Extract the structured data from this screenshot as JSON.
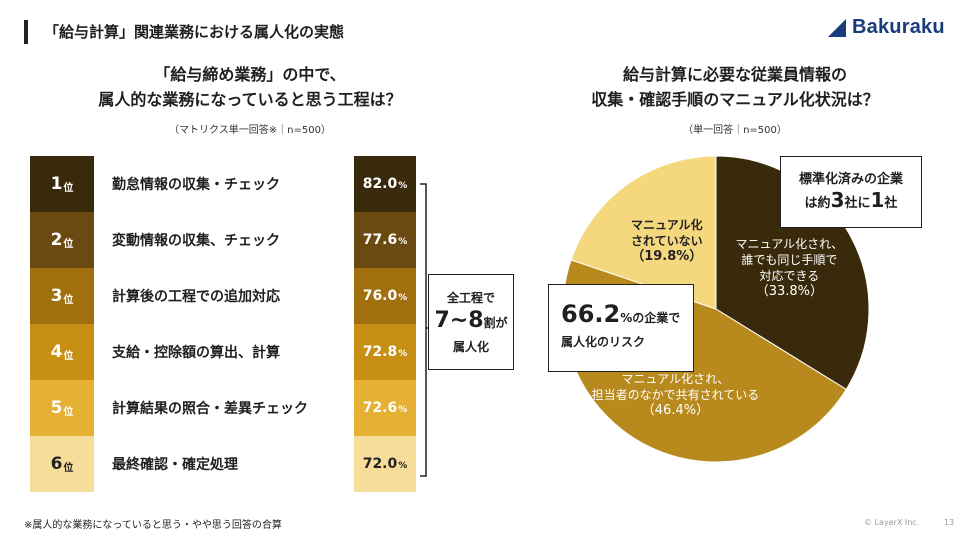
{
  "header": {
    "title": "「給与計算」関連業務における属人化の実態"
  },
  "brand": {
    "name": "Bakuraku",
    "color": "#1a3c7a"
  },
  "left": {
    "title_lines": [
      "「給与締め業務」の中で、",
      "属人的な業務になっていると思う工程は？"
    ],
    "note": "（マトリクス単一回答※｜n=500）",
    "rank_suffix": "位",
    "pct_unit": "%",
    "summary": {
      "line1": "全工程で",
      "main": "7~8",
      "unit": "割",
      "tail": "が",
      "line3": "属人化"
    }
  },
  "right": {
    "title_lines": [
      "給与計算に必要な従業員情報の",
      "収集・確認手順のマニュアル化状況は？"
    ],
    "note": "（単一回答｜n=500）",
    "callout_top": {
      "line1": "標準化済みの企業",
      "pre": "は約",
      "num1": "3",
      "mid": "社に",
      "num2": "1",
      "post": "社"
    },
    "callout_left": {
      "num": "66.2",
      "unit": "%の企業で",
      "line2": "属人化のリスク"
    }
  },
  "chart_data": [
    {
      "type": "bar",
      "title": "「給与締め業務」の中で、属人的な業務になっていると思う工程は？",
      "categories": [
        "勤怠情報の収集・チェック",
        "変動情報の収集、チェック",
        "計算後の工程での追加対応",
        "支給・控除額の算出、計算",
        "計算結果の照合・差異チェック",
        "最終確認・確定処理"
      ],
      "ranks": [
        "1",
        "2",
        "3",
        "4",
        "5",
        "6"
      ],
      "values": [
        82.0,
        77.6,
        76.0,
        72.8,
        72.6,
        72.0
      ],
      "value_labels": [
        "82.0",
        "77.6",
        "76.0",
        "72.8",
        "72.6",
        "72.0"
      ],
      "unit": "%",
      "colors": [
        "#3a2a0c",
        "#6b4a12",
        "#a0700e",
        "#c78f14",
        "#e6b033",
        "#f7dd9a"
      ],
      "text_colors": [
        "#ffffff",
        "#ffffff",
        "#ffffff",
        "#ffffff",
        "#ffffff",
        "#222222"
      ]
    },
    {
      "type": "pie",
      "title": "給与計算に必要な従業員情報の収集・確認手順のマニュアル化状況は？",
      "slices": [
        {
          "label_lines": [
            "マニュアル化され、",
            "誰でも同じ手順で",
            "対応できる"
          ],
          "value": 33.8,
          "value_label": "（33.8%）",
          "color": "#3a2a0c",
          "text_color": "#ffffff"
        },
        {
          "label_lines": [
            "マニュアル化され、",
            "担当者のなかで共有されている"
          ],
          "value": 46.4,
          "value_label": "（46.4%）",
          "color": "#b88a1e",
          "text_color": "#ffffff"
        },
        {
          "label_lines": [
            "マニュアル化",
            "されていない"
          ],
          "value": 19.8,
          "value_label": "（19.8%）",
          "color": "#f5d77e",
          "text_color": "#222222"
        }
      ]
    }
  ],
  "footer": {
    "footnote": "※属人的な業務になっていると思う・やや思う回答の合算",
    "copyright": "© LayerX Inc.",
    "page": "13"
  }
}
